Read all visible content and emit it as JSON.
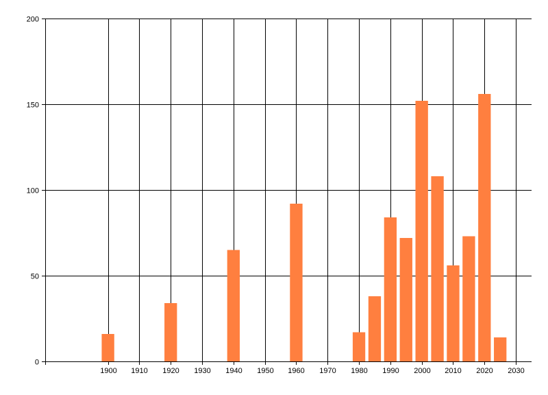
{
  "chart_data": {
    "type": "bar",
    "x": [
      1900,
      1920,
      1940,
      1960,
      1980,
      1985,
      1990,
      1995,
      2000,
      2005,
      2010,
      2015,
      2020,
      2025
    ],
    "values": [
      16,
      34,
      65,
      92,
      17,
      38,
      84,
      72,
      152,
      108,
      56,
      73,
      156,
      14
    ],
    "xlim": [
      1880,
      2035
    ],
    "ylim": [
      0,
      200
    ],
    "xticks": [
      1900,
      1910,
      1920,
      1930,
      1940,
      1950,
      1960,
      1970,
      1980,
      1990,
      2000,
      2010,
      2020,
      2030
    ],
    "yticks": [
      0,
      50,
      100,
      150,
      200
    ],
    "grid": true,
    "bar_color": "#ff7f3f",
    "grid_color": "#000000",
    "title": "",
    "xlabel": "",
    "ylabel": ""
  }
}
